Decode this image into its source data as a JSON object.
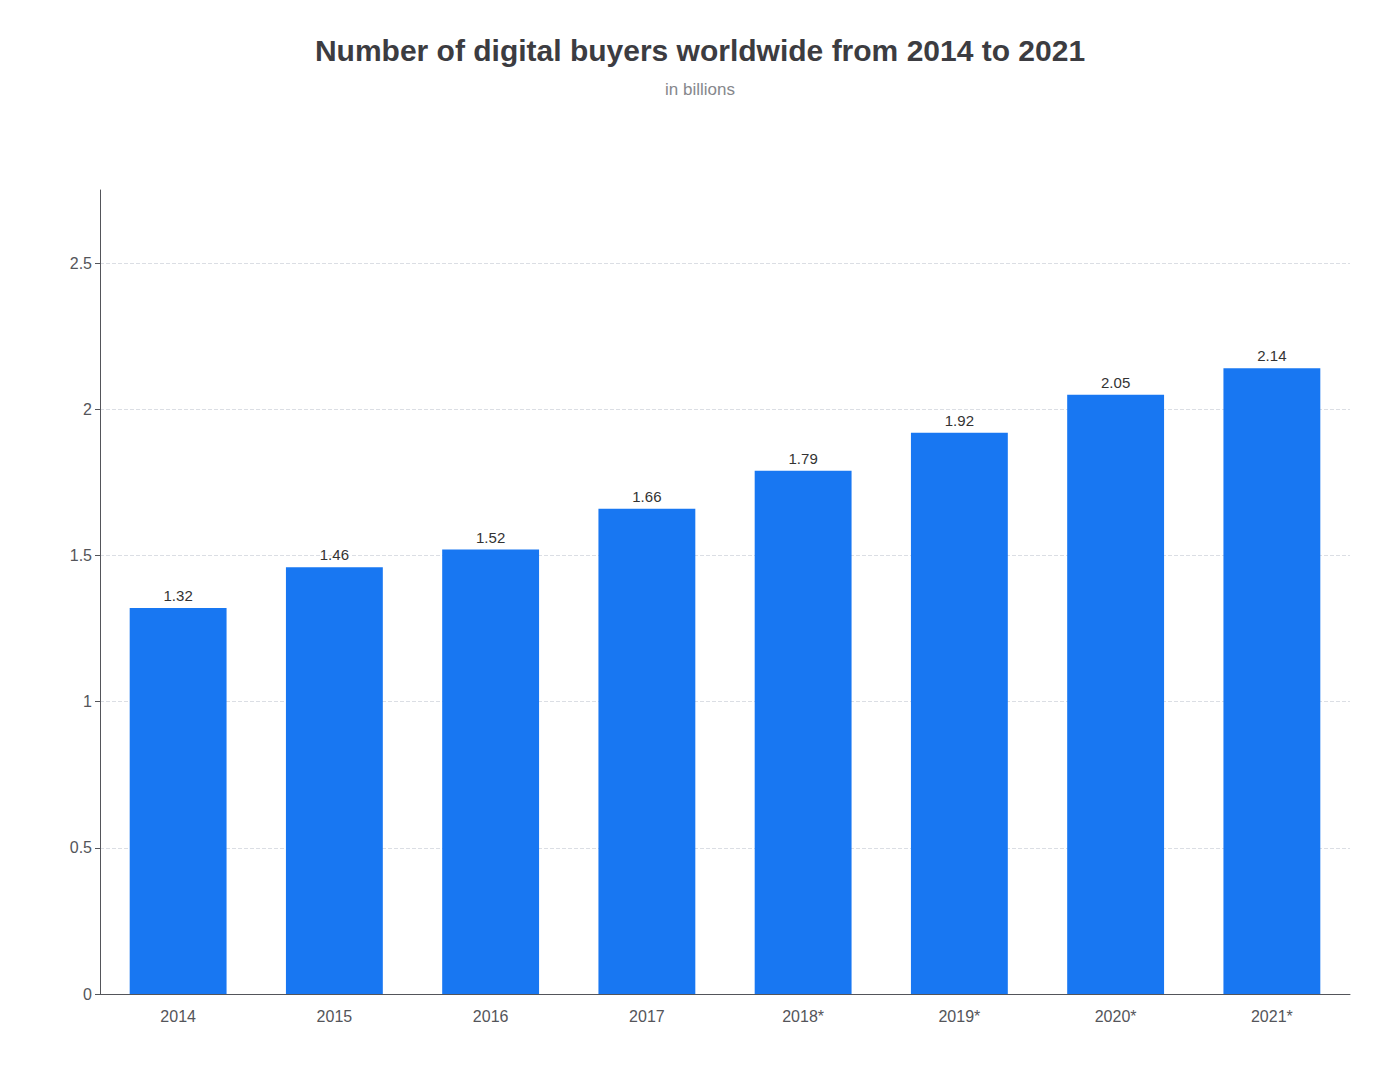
{
  "chart_data": {
    "type": "bar",
    "title": "Number of digital buyers worldwide from 2014 to 2021",
    "subtitle": "in billions",
    "categories": [
      "2014",
      "2015",
      "2016",
      "2017",
      "2018*",
      "2019*",
      "2020*",
      "2021*"
    ],
    "values": [
      1.32,
      1.46,
      1.52,
      1.66,
      1.79,
      1.92,
      2.05,
      2.14
    ],
    "color": "#1877f2",
    "ylim": [
      0,
      2.75
    ],
    "yticks": [
      0,
      0.5,
      1,
      1.5,
      2,
      2.5
    ],
    "grid": true,
    "data_labels": true
  }
}
